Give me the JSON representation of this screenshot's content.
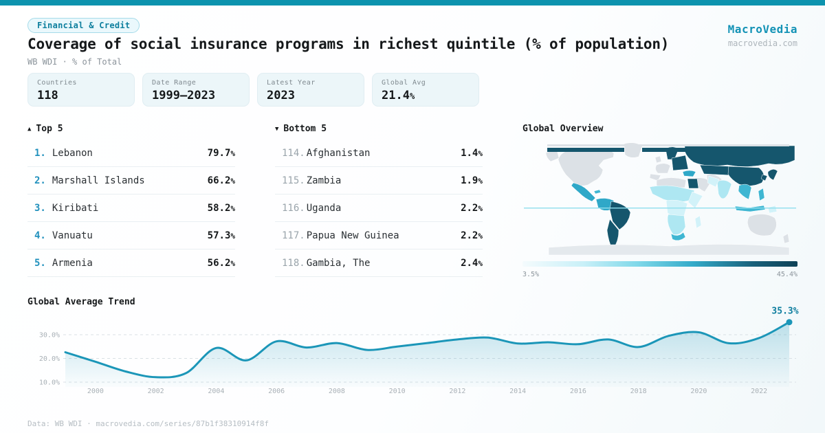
{
  "colors": {
    "accent": "#0d93ae",
    "brand": "#1493b6",
    "badge_text": "#0d7f9e",
    "rank_top": "#2191bd",
    "line": "#1b96b8",
    "map_dark": "#15566d",
    "map_nodata": "#dce1e6"
  },
  "header": {
    "badge": "Financial & Credit",
    "title": "Coverage of social insurance programs in richest quintile (% of population)",
    "subtitle": "WB WDI · % of Total",
    "brand": "MacroVedia",
    "brand_url": "macrovedia.com"
  },
  "stats": {
    "items": [
      {
        "label": "Countries",
        "value": "118",
        "suffix": ""
      },
      {
        "label": "Date Range",
        "value": "1999–2023",
        "suffix": ""
      },
      {
        "label": "Latest Year",
        "value": "2023",
        "suffix": ""
      },
      {
        "label": "Global Avg",
        "value": "21.4",
        "suffix": "%"
      }
    ]
  },
  "rankings": {
    "top": {
      "arrow": "▲",
      "label": "Top 5",
      "rows": [
        {
          "rank": "1.",
          "name": "Lebanon",
          "value": "79.7"
        },
        {
          "rank": "2.",
          "name": "Marshall Islands",
          "value": "66.2"
        },
        {
          "rank": "3.",
          "name": "Kiribati",
          "value": "58.2"
        },
        {
          "rank": "4.",
          "name": "Vanuatu",
          "value": "57.3"
        },
        {
          "rank": "5.",
          "name": "Armenia",
          "value": "56.2"
        }
      ]
    },
    "bottom": {
      "arrow": "▼",
      "label": "Bottom 5",
      "rows": [
        {
          "rank": "114.",
          "name": "Afghanistan",
          "value": "1.4"
        },
        {
          "rank": "115.",
          "name": "Zambia",
          "value": "1.9"
        },
        {
          "rank": "116.",
          "name": "Uganda",
          "value": "2.2"
        },
        {
          "rank": "117.",
          "name": "Papua New Guinea",
          "value": "2.2"
        },
        {
          "rank": "118.",
          "name": "Gambia, The",
          "value": "2.4"
        }
      ]
    }
  },
  "units": {
    "percent": "%"
  },
  "footer": {
    "text": "Data: WB WDI · macrovedia.com/series/87b1f38310914f8f"
  },
  "chart_data": [
    {
      "type": "line",
      "title": "Global Average Trend",
      "x": [
        1999,
        2000,
        2001,
        2002,
        2003,
        2004,
        2005,
        2006,
        2007,
        2008,
        2009,
        2010,
        2011,
        2012,
        2013,
        2014,
        2015,
        2016,
        2017,
        2018,
        2019,
        2020,
        2021,
        2022,
        2023
      ],
      "values": [
        22.6,
        18.6,
        14.5,
        12.1,
        13.8,
        24.4,
        19.2,
        27.2,
        24.6,
        26.5,
        23.6,
        25.0,
        26.5,
        28.0,
        28.8,
        26.3,
        26.8,
        26.0,
        28.0,
        24.8,
        29.5,
        31.0,
        26.4,
        28.6,
        35.3
      ],
      "xlabel": "",
      "ylabel": "",
      "yticks": [
        30,
        20,
        10
      ],
      "ytick_labels": [
        "30.0%",
        "20.0%",
        "10.0%"
      ],
      "xticks": [
        2000,
        2002,
        2004,
        2006,
        2008,
        2010,
        2012,
        2014,
        2016,
        2018,
        2020,
        2022
      ],
      "ylim": [
        8,
        37
      ],
      "grid": true,
      "legend_position": "none",
      "annotation": "35.3%",
      "line_color": "#1b96b8"
    },
    {
      "type": "heatmap",
      "subtype": "choropleth-world-map",
      "title": "Global Overview",
      "legend": {
        "min_label": "3.5%",
        "max_label": "45.4%",
        "min": 3.5,
        "max": 45.4,
        "unit": "%"
      },
      "palette": [
        "#f4fbfd",
        "#c9f0f8",
        "#7fd8e9",
        "#34abc9",
        "#15566d"
      ],
      "no_data_color": "#dce1e6"
    }
  ]
}
